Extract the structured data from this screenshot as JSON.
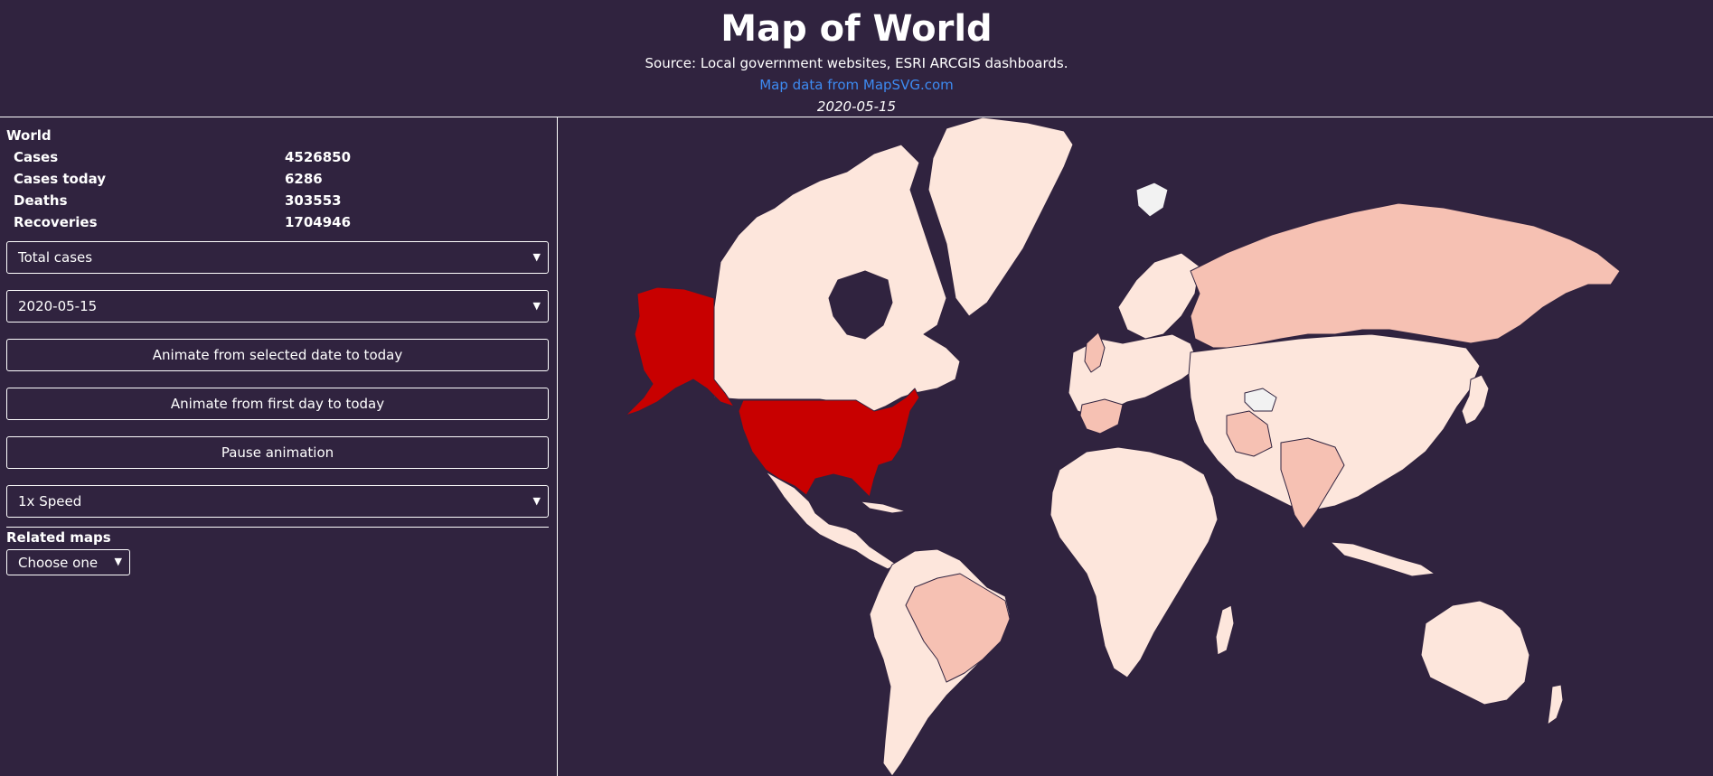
{
  "header": {
    "title": "Map of World",
    "source": "Source: Local government websites, ESRI ARCGIS dashboards.",
    "map_link": "Map data from MapSVG.com",
    "date": "2020-05-15"
  },
  "sidebar": {
    "region": "World",
    "stats": [
      {
        "label": "Cases",
        "value": "4526850"
      },
      {
        "label": "Cases today",
        "value": "6286"
      },
      {
        "label": "Deaths",
        "value": "303553"
      },
      {
        "label": "Recoveries",
        "value": "1704946"
      }
    ],
    "metric_select": "Total cases",
    "date_select": "2020-05-15",
    "animate_selected_label": "Animate from selected date to today",
    "animate_first_label": "Animate from first day to today",
    "pause_label": "Pause animation",
    "speed_select": "1x Speed",
    "related_label": "Related maps",
    "related_select": "Choose one"
  },
  "map": {
    "colors": {
      "background": "#30233f",
      "max": "#c80000",
      "high": "#f6c1b3",
      "mid": "#fadbd0",
      "low": "#fde6dc",
      "none": "#f2f2f2"
    }
  }
}
